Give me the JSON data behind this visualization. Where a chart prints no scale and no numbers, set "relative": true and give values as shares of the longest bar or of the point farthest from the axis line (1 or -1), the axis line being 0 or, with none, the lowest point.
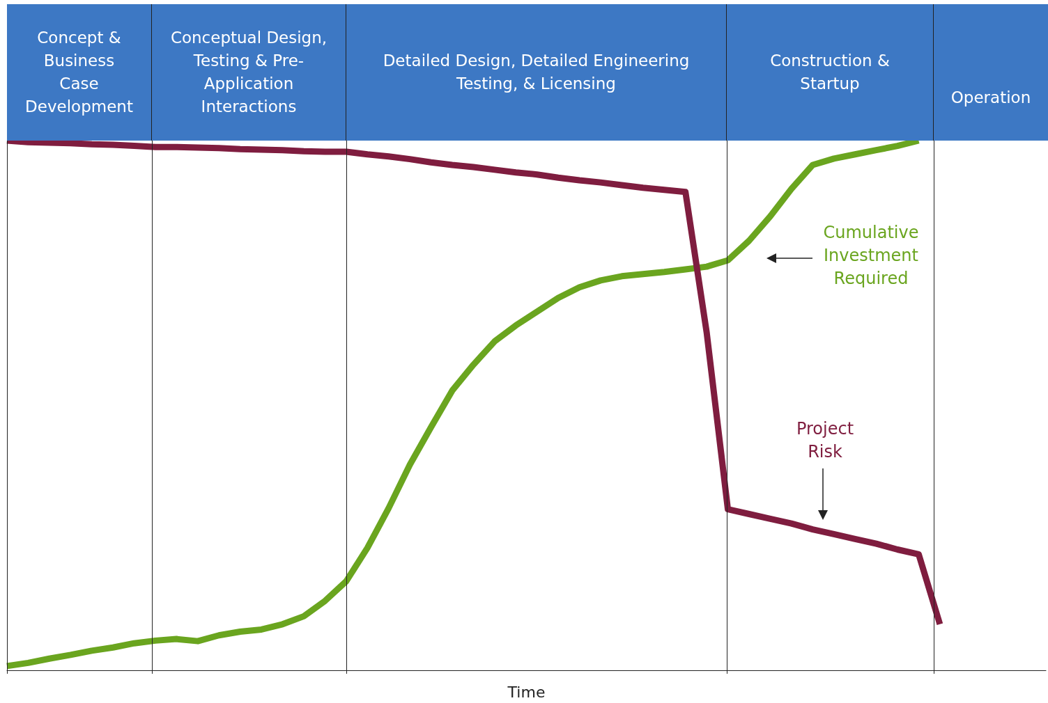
{
  "chart_data": {
    "type": "line",
    "relative": true,
    "xlabel": "Time",
    "legend": false,
    "grid": "x",
    "marker": "none",
    "line_style": "solid",
    "categories": [
      null,
      null,
      null,
      null,
      null,
      null,
      null,
      null,
      null,
      null,
      null,
      null,
      null,
      null,
      null,
      null,
      null,
      null,
      null,
      null,
      null,
      null,
      null,
      null,
      null,
      null,
      null,
      null,
      null,
      null,
      null,
      null,
      null,
      null,
      null,
      null,
      null,
      null,
      null,
      null,
      null,
      null,
      null,
      null,
      null,
      null,
      null,
      null,
      null,
      null
    ],
    "series": [
      {
        "name": "Cumulative Investment Required",
        "color": "#6aa51f",
        "values": [
          0.008,
          0.014,
          0.022,
          0.029,
          0.037,
          0.043,
          0.051,
          0.056,
          0.059,
          0.055,
          0.066,
          0.073,
          0.077,
          0.087,
          0.102,
          0.131,
          0.168,
          0.231,
          0.306,
          0.388,
          0.459,
          0.528,
          0.577,
          0.621,
          0.651,
          0.677,
          0.703,
          0.723,
          0.736,
          0.744,
          0.748,
          0.752,
          0.757,
          0.762,
          0.774,
          0.811,
          0.857,
          0.909,
          0.954,
          0.966,
          0.974,
          0.982,
          0.99,
          1,
          null,
          null,
          null,
          null,
          null,
          null
        ]
      },
      {
        "name": "Project Risk",
        "color": "#7f1d3f",
        "values": [
          1,
          0.997,
          0.996,
          0.995,
          0.993,
          0.992,
          0.99,
          0.988,
          0.988,
          0.987,
          0.986,
          0.984,
          0.983,
          0.982,
          0.98,
          0.979,
          0.979,
          0.974,
          0.97,
          0.965,
          0.959,
          0.954,
          0.95,
          0.945,
          0.94,
          0.936,
          0.93,
          0.925,
          0.921,
          0.916,
          0.911,
          0.907,
          0.903,
          0.638,
          0.304,
          0.295,
          0.286,
          0.277,
          0.266,
          0.257,
          0.248,
          0.239,
          0.228,
          0.219,
          0.087,
          null,
          null,
          null,
          null,
          null
        ]
      }
    ],
    "annotations": [
      "Concept & Business Case Development",
      "Conceptual Design, Testing & Pre-Application Interactions",
      "Detailed Design, Detailed Engineering Testing, & Licensing",
      "Construction & Startup",
      "Operation"
    ]
  }
}
